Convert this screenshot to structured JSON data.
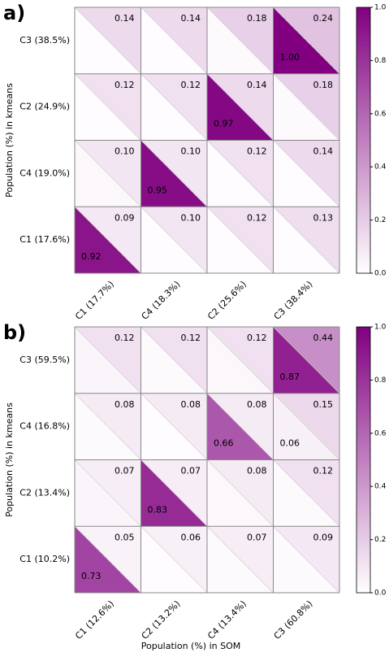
{
  "chart_data": [
    {
      "type": "triangle-heatmap",
      "panel": "a)",
      "ylabel": "Population (%) in kmeans",
      "x_categories": [
        "C1 (17.7%)",
        "C4 (18.3%)",
        "C2 (25.6%)",
        "C3 (38.4%)"
      ],
      "y_categories": [
        "C3 (38.5%)",
        "C2 (24.9%)",
        "C4 (19.0%)",
        "C1 (17.6%)"
      ],
      "upper_values": [
        [
          0.14,
          0.14,
          0.18,
          0.24
        ],
        [
          0.12,
          0.12,
          0.14,
          0.18
        ],
        [
          0.1,
          0.1,
          0.12,
          0.14
        ],
        [
          0.09,
          0.1,
          0.12,
          0.13
        ]
      ],
      "upper_value_labels": [
        [
          "0.14",
          "0.14",
          "0.18",
          "0.24"
        ],
        [
          "0.12",
          "0.12",
          "0.14",
          "0.18"
        ],
        [
          "0.10",
          "0.10",
          "0.12",
          "0.14"
        ],
        [
          "0.09",
          "0.10",
          "0.12",
          "0.13"
        ]
      ],
      "lower_values": [
        [
          0.01,
          0.01,
          0.02,
          1.0
        ],
        [
          0.01,
          0.01,
          0.97,
          0.02
        ],
        [
          0.03,
          0.95,
          0.01,
          0.01
        ],
        [
          0.92,
          0.01,
          0.01,
          0.01
        ]
      ],
      "lower_value_labels": [
        [
          null,
          null,
          null,
          "1.00"
        ],
        [
          null,
          null,
          "0.97",
          null
        ],
        [
          null,
          "0.95",
          null,
          null
        ],
        [
          "0.92",
          null,
          null,
          null
        ]
      ],
      "cmap": [
        "#ffffff",
        "#800080"
      ],
      "clim": [
        0,
        1
      ],
      "cticks": [
        {
          "value": 0,
          "label": "0.0"
        },
        0.2,
        0.4,
        0.6,
        0.8,
        {
          "value": 1,
          "label": "1.0"
        }
      ]
    },
    {
      "type": "triangle-heatmap",
      "panel": "b)",
      "ylabel": "Population (%) in kmeans",
      "xlabel": "Population (%) in SOM",
      "x_categories": [
        "C1 (12.6%)",
        "C2 (13.2%)",
        "C4 (13.4%)",
        "C3 (60.8%)"
      ],
      "y_categories": [
        "C3 (59.5%)",
        "C4 (16.8%)",
        "C2 (13.4%)",
        "C1 (10.2%)"
      ],
      "upper_values": [
        [
          0.12,
          0.12,
          0.12,
          0.44
        ],
        [
          0.08,
          0.08,
          0.08,
          0.15
        ],
        [
          0.07,
          0.07,
          0.08,
          0.12
        ],
        [
          0.05,
          0.06,
          0.07,
          0.09
        ]
      ],
      "upper_value_labels": [
        [
          "0.12",
          "0.12",
          "0.12",
          "0.44"
        ],
        [
          "0.08",
          "0.08",
          "0.08",
          "0.15"
        ],
        [
          "0.07",
          "0.07",
          "0.08",
          "0.12"
        ],
        [
          "0.05",
          "0.06",
          "0.07",
          "0.09"
        ]
      ],
      "lower_values": [
        [
          0.04,
          0.02,
          0.03,
          0.87
        ],
        [
          0.02,
          0.01,
          0.66,
          0.06
        ],
        [
          0.04,
          0.83,
          0.03,
          0.02
        ],
        [
          0.73,
          0.01,
          0.02,
          0.02
        ]
      ],
      "lower_value_labels": [
        [
          null,
          null,
          null,
          "0.87"
        ],
        [
          null,
          null,
          "0.66",
          "0.06"
        ],
        [
          null,
          "0.83",
          null,
          null
        ],
        [
          "0.73",
          null,
          null,
          null
        ]
      ],
      "cmap": [
        "#ffffff",
        "#800080"
      ],
      "clim": [
        0,
        1
      ],
      "cticks": [
        {
          "value": 0,
          "label": "0.0"
        },
        0.2,
        0.4,
        0.6,
        0.8,
        {
          "value": 1,
          "label": "1.0"
        }
      ]
    }
  ]
}
